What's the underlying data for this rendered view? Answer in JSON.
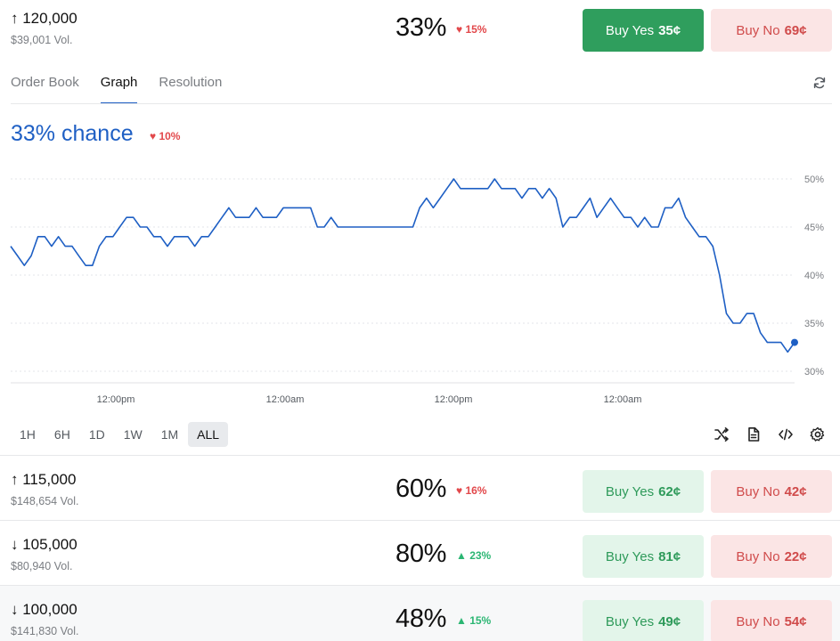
{
  "markets": [
    {
      "title": "↑ 120,000",
      "volume": "$39,001 Vol.",
      "percent": "33%",
      "change": "♥ 15%",
      "direction": "down",
      "yes": {
        "label": "Buy Yes",
        "price": "35¢"
      },
      "no": {
        "label": "Buy No",
        "price": "69¢"
      }
    },
    {
      "title": "↑ 115,000",
      "volume": "$148,654 Vol.",
      "percent": "60%",
      "change": "♥ 16%",
      "direction": "down",
      "yes": {
        "label": "Buy Yes",
        "price": "62¢"
      },
      "no": {
        "label": "Buy No",
        "price": "42¢"
      }
    },
    {
      "title": "↓ 105,000",
      "volume": "$80,940 Vol.",
      "percent": "80%",
      "change": "▲ 23%",
      "direction": "up",
      "yes": {
        "label": "Buy Yes",
        "price": "81¢"
      },
      "no": {
        "label": "Buy No",
        "price": "22¢"
      }
    },
    {
      "title": "↓ 100,000",
      "volume": "$141,830 Vol.",
      "percent": "48%",
      "change": "▲ 15%",
      "direction": "up",
      "yes": {
        "label": "Buy Yes",
        "price": "49¢"
      },
      "no": {
        "label": "Buy No",
        "price": "54¢"
      }
    }
  ],
  "tabs": [
    "Order Book",
    "Graph",
    "Resolution"
  ],
  "active_tab": "Graph",
  "chance": {
    "label": "33% chance",
    "change": "♥ 10%"
  },
  "ranges": [
    "1H",
    "6H",
    "1D",
    "1W",
    "1M",
    "ALL"
  ],
  "active_range": "ALL",
  "icons": {
    "refresh": "refresh-icon",
    "shuffle": "shuffle-icon",
    "document": "document-icon",
    "embed": "code-icon",
    "settings": "gear-icon"
  },
  "colors": {
    "line": "#1e5fc4",
    "yes": "#2f9e5d",
    "no": "#d04b4b"
  },
  "chart_data": {
    "type": "line",
    "x_ticks": [
      "12:00pm",
      "12:00am",
      "12:00pm",
      "12:00am"
    ],
    "y_ticks": [
      "50%",
      "45%",
      "40%",
      "35%",
      "30%"
    ],
    "ylim": [
      30,
      50
    ],
    "grid": true,
    "series": [
      {
        "values": [
          43,
          42,
          41,
          42,
          44,
          44,
          43,
          44,
          43,
          43,
          42,
          41,
          41,
          43,
          44,
          44,
          45,
          46,
          46,
          45,
          45,
          44,
          44,
          43,
          44,
          44,
          44,
          43,
          44,
          44,
          45,
          46,
          47,
          46,
          46,
          46,
          47,
          46,
          46,
          46,
          47,
          47,
          47,
          47,
          47,
          45,
          45,
          46,
          45,
          45,
          45,
          45,
          45,
          45,
          45,
          45,
          45,
          45,
          45,
          45,
          47,
          48,
          47,
          48,
          49,
          50,
          49,
          49,
          49,
          49,
          49,
          50,
          49,
          49,
          49,
          48,
          49,
          49,
          48,
          49,
          48,
          45,
          46,
          46,
          47,
          48,
          46,
          47,
          48,
          47,
          46,
          46,
          45,
          46,
          45,
          45,
          47,
          47,
          48,
          46,
          45,
          44,
          44,
          43,
          40,
          36,
          35,
          35,
          36,
          36,
          34,
          33,
          33,
          33,
          32,
          33
        ]
      }
    ]
  }
}
